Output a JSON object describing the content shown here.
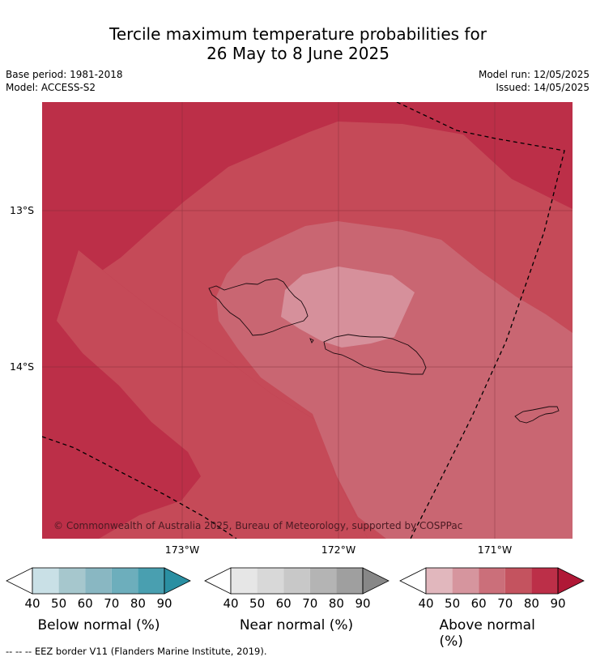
{
  "title": {
    "line1": "Tercile maximum temperature probabilities for",
    "line2": "26 May to 8 June 2025"
  },
  "meta": {
    "base_period": "Base period: 1981-2018",
    "model": "Model: ACCESS-S2",
    "model_run": "Model run: 12/05/2025",
    "issued": "Issued: 14/05/2025"
  },
  "map": {
    "copyright": "© Commonwealth of Australia 2025, Bureau of Meteorology, supported by COSPPac",
    "lat_labels": [
      "13°S",
      "14°S"
    ],
    "lon_labels": [
      "173°W",
      "172°W",
      "171°W"
    ]
  },
  "colorbars": [
    {
      "name": "below",
      "title": "Below normal (%)",
      "ticks": [
        "40",
        "50",
        "60",
        "70",
        "80",
        "90"
      ],
      "colors": [
        "#ffffff",
        "#c9e0e6",
        "#a6c7cd",
        "#89b7c2",
        "#6daebc",
        "#499fb0",
        "#2a8fa2"
      ]
    },
    {
      "name": "near",
      "title": "Near normal (%)",
      "ticks": [
        "40",
        "50",
        "60",
        "70",
        "80",
        "90"
      ],
      "colors": [
        "#ffffff",
        "#e6e6e6",
        "#d8d8d8",
        "#c8c8c8",
        "#b4b4b4",
        "#9f9f9f",
        "#878787"
      ]
    },
    {
      "name": "above",
      "title": "Above normal (%)",
      "ticks": [
        "40",
        "50",
        "60",
        "70",
        "80",
        "90"
      ],
      "colors": [
        "#ffffff",
        "#e1b7bd",
        "#d6959e",
        "#cb6f7a",
        "#c4535f",
        "#bc2f48",
        "#b01836"
      ]
    }
  ],
  "footnote": "--  --  -- EEZ border V11 (Flanders Marine Institute, 2019)."
}
